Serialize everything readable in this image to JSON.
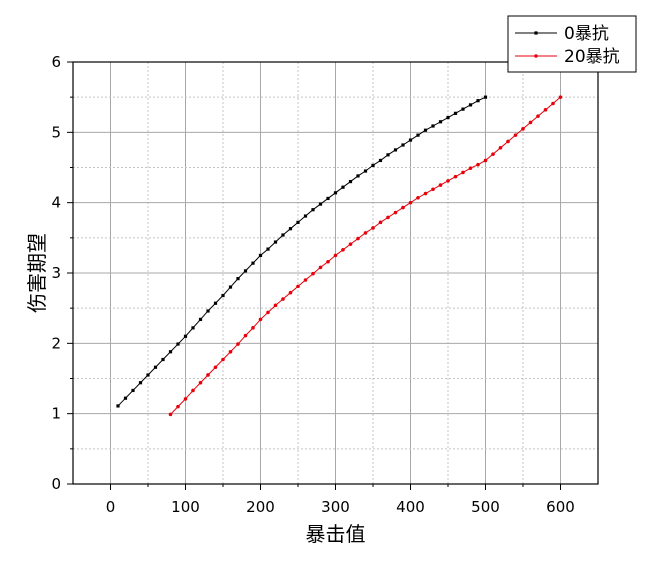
{
  "chart_data": {
    "type": "line",
    "title": "",
    "xlabel": "暴击值",
    "ylabel": "伤害期望",
    "xlim": [
      -50,
      650
    ],
    "ylim": [
      0,
      6
    ],
    "xticks": [
      0,
      100,
      200,
      300,
      400,
      500,
      600
    ],
    "yticks": [
      0,
      1,
      2,
      3,
      4,
      5,
      6
    ],
    "xtick_labels": [
      "0",
      "100",
      "200",
      "300",
      "400",
      "500",
      "600"
    ],
    "ytick_labels": [
      "0",
      "1",
      "2",
      "3",
      "4",
      "5",
      "6"
    ],
    "grid": true,
    "legend_position": "top-right",
    "series": [
      {
        "name": "0暴抗",
        "color": "#000000",
        "marker": "square",
        "x": [
          10,
          20,
          30,
          40,
          50,
          60,
          70,
          80,
          90,
          100,
          110,
          120,
          130,
          140,
          150,
          160,
          170,
          180,
          190,
          200,
          210,
          220,
          230,
          240,
          250,
          260,
          270,
          280,
          290,
          300,
          310,
          320,
          330,
          340,
          350,
          360,
          370,
          380,
          390,
          400,
          410,
          420,
          430,
          440,
          450,
          460,
          470,
          480,
          490,
          500
        ],
        "y": [
          1.11,
          1.22,
          1.33,
          1.44,
          1.55,
          1.66,
          1.77,
          1.88,
          1.99,
          2.1,
          2.22,
          2.34,
          2.46,
          2.57,
          2.68,
          2.8,
          2.92,
          3.03,
          3.14,
          3.25,
          3.34,
          3.44,
          3.54,
          3.63,
          3.72,
          3.81,
          3.9,
          3.98,
          4.06,
          4.14,
          4.22,
          4.3,
          4.38,
          4.45,
          4.53,
          4.6,
          4.68,
          4.75,
          4.82,
          4.89,
          4.96,
          5.03,
          5.09,
          5.15,
          5.21,
          5.27,
          5.33,
          5.39,
          5.45,
          5.5
        ]
      },
      {
        "name": "20暴抗",
        "color": "#e8000b",
        "marker": "circle",
        "x": [
          80,
          90,
          100,
          110,
          120,
          130,
          140,
          150,
          160,
          170,
          180,
          190,
          200,
          210,
          220,
          230,
          240,
          250,
          260,
          270,
          280,
          290,
          300,
          310,
          320,
          330,
          340,
          350,
          360,
          370,
          380,
          390,
          400,
          410,
          420,
          430,
          440,
          450,
          460,
          470,
          480,
          490,
          500,
          510,
          520,
          530,
          540,
          550,
          560,
          570,
          580,
          590,
          600
        ],
        "y": [
          0.99,
          1.1,
          1.21,
          1.33,
          1.44,
          1.55,
          1.66,
          1.77,
          1.88,
          1.99,
          2.11,
          2.22,
          2.34,
          2.44,
          2.54,
          2.63,
          2.72,
          2.81,
          2.9,
          2.99,
          3.08,
          3.16,
          3.25,
          3.33,
          3.41,
          3.49,
          3.57,
          3.64,
          3.72,
          3.79,
          3.86,
          3.93,
          4.0,
          4.07,
          4.13,
          4.19,
          4.25,
          4.31,
          4.37,
          4.43,
          4.49,
          4.54,
          4.6,
          4.69,
          4.78,
          4.87,
          4.96,
          5.05,
          5.14,
          5.23,
          5.32,
          5.41,
          5.5
        ]
      }
    ]
  }
}
